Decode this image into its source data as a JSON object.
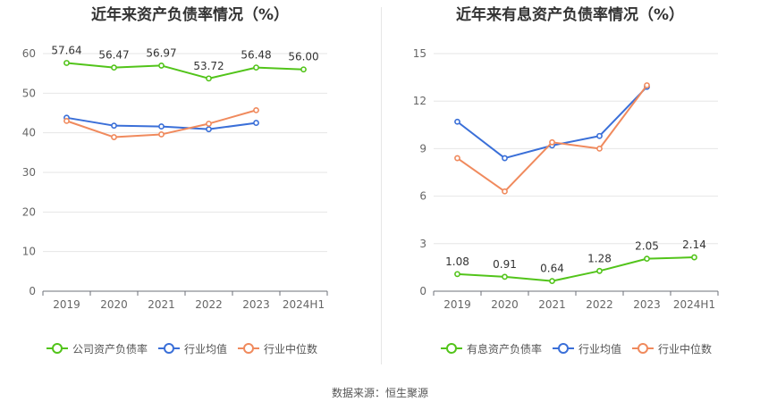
{
  "source": "数据来源：恒生聚源",
  "chart_data": [
    {
      "type": "line",
      "title": "近年来资产负债率情况（%）",
      "categories": [
        "2019",
        "2020",
        "2021",
        "2022",
        "2023",
        "2024H1"
      ],
      "ylim": [
        0,
        60
      ],
      "yticks": [
        0,
        10,
        20,
        30,
        40,
        50,
        60
      ],
      "grid": true,
      "legend_position": "bottom",
      "series": [
        {
          "name": "公司资产负债率",
          "color": "#52c41a",
          "values": [
            57.64,
            56.47,
            56.97,
            53.72,
            56.48,
            56.0
          ],
          "labels": [
            "57.64",
            "56.47",
            "56.97",
            "53.72",
            "56.48",
            "56.00"
          ]
        },
        {
          "name": "行业均值",
          "color": "#3a6fd8",
          "values": [
            43.8,
            41.8,
            41.6,
            40.9,
            42.5,
            null
          ]
        },
        {
          "name": "行业中位数",
          "color": "#f08a5d",
          "values": [
            43.0,
            38.9,
            39.6,
            42.3,
            45.7,
            null
          ]
        }
      ]
    },
    {
      "type": "line",
      "title": "近年来有息资产负债率情况（%）",
      "categories": [
        "2019",
        "2020",
        "2021",
        "2022",
        "2023",
        "2024H1"
      ],
      "ylim": [
        0,
        15
      ],
      "yticks": [
        0,
        3,
        6,
        9,
        12,
        15
      ],
      "grid": true,
      "legend_position": "bottom",
      "series": [
        {
          "name": "有息资产负债率",
          "color": "#52c41a",
          "values": [
            1.08,
            0.91,
            0.64,
            1.28,
            2.05,
            2.14
          ],
          "labels": [
            "1.08",
            "0.91",
            "0.64",
            "1.28",
            "2.05",
            "2.14"
          ]
        },
        {
          "name": "行业均值",
          "color": "#3a6fd8",
          "values": [
            10.7,
            8.4,
            9.2,
            9.8,
            12.9,
            null
          ]
        },
        {
          "name": "行业中位数",
          "color": "#f08a5d",
          "values": [
            8.4,
            6.3,
            9.4,
            9.0,
            13.0,
            null
          ]
        }
      ]
    }
  ]
}
